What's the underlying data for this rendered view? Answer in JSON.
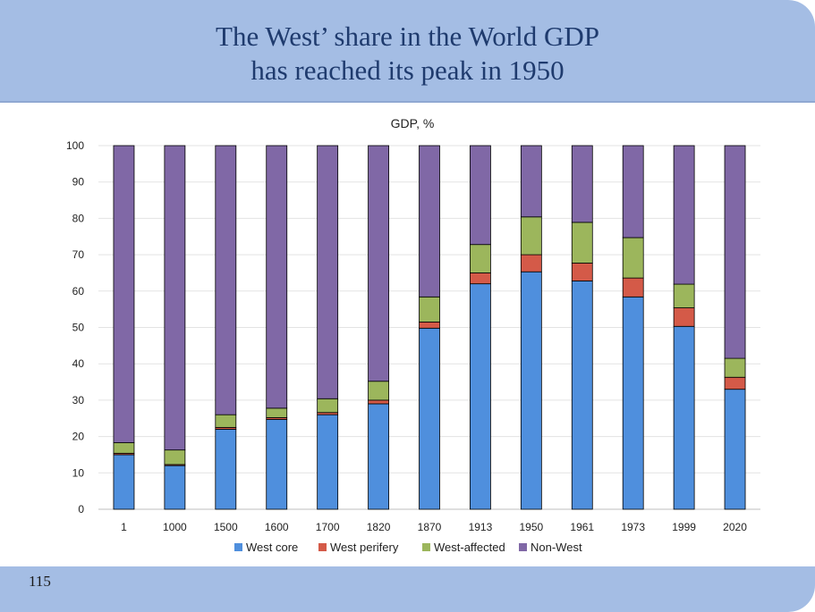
{
  "slide": {
    "title_line1": "The West’ share in the World GDP",
    "title_line2": "has reached its peak in 1950",
    "page_number": "115"
  },
  "colors": {
    "band": "#a4bde4",
    "title": "#1f3b6e",
    "west_core": "#4f8fdd",
    "west_perifery": "#d45a48",
    "west_affected": "#9cb65c",
    "non_west": "#8068a6"
  },
  "chart_data": {
    "type": "bar",
    "stacked": true,
    "title": "GDP, %",
    "xlabel": "",
    "ylabel": "",
    "ylim": [
      0,
      100
    ],
    "yticks": [
      0,
      10,
      20,
      30,
      40,
      50,
      60,
      70,
      80,
      90,
      100
    ],
    "grid": true,
    "legend_position": "bottom",
    "categories": [
      "1",
      "1000",
      "1500",
      "1600",
      "1700",
      "1820",
      "1870",
      "1913",
      "1950",
      "1961",
      "1973",
      "1999",
      "2020"
    ],
    "series": [
      {
        "name": "West core",
        "color": "#4f8fdd",
        "values": [
          15,
          12,
          22,
          24.7,
          26,
          29,
          49.8,
          62,
          65.3,
          62.8,
          58.4,
          50.3,
          33
        ]
      },
      {
        "name": "West perifery",
        "color": "#d45a48",
        "values": [
          0.4,
          0.3,
          0.5,
          0.5,
          0.6,
          1,
          1.7,
          3,
          4.7,
          4.9,
          5.2,
          5.1,
          3.3
        ]
      },
      {
        "name": "West-affected",
        "color": "#9cb65c",
        "values": [
          2.9,
          4,
          3.5,
          2.6,
          3.8,
          5.2,
          6.9,
          7.8,
          10.4,
          11.2,
          11.1,
          6.5,
          5.2
        ]
      },
      {
        "name": "Non-West",
        "color": "#8068a6",
        "values": [
          81.7,
          83.7,
          74,
          72.2,
          69.6,
          64.8,
          41.6,
          27.2,
          19.6,
          21.1,
          25.3,
          38.1,
          58.5
        ]
      }
    ]
  }
}
